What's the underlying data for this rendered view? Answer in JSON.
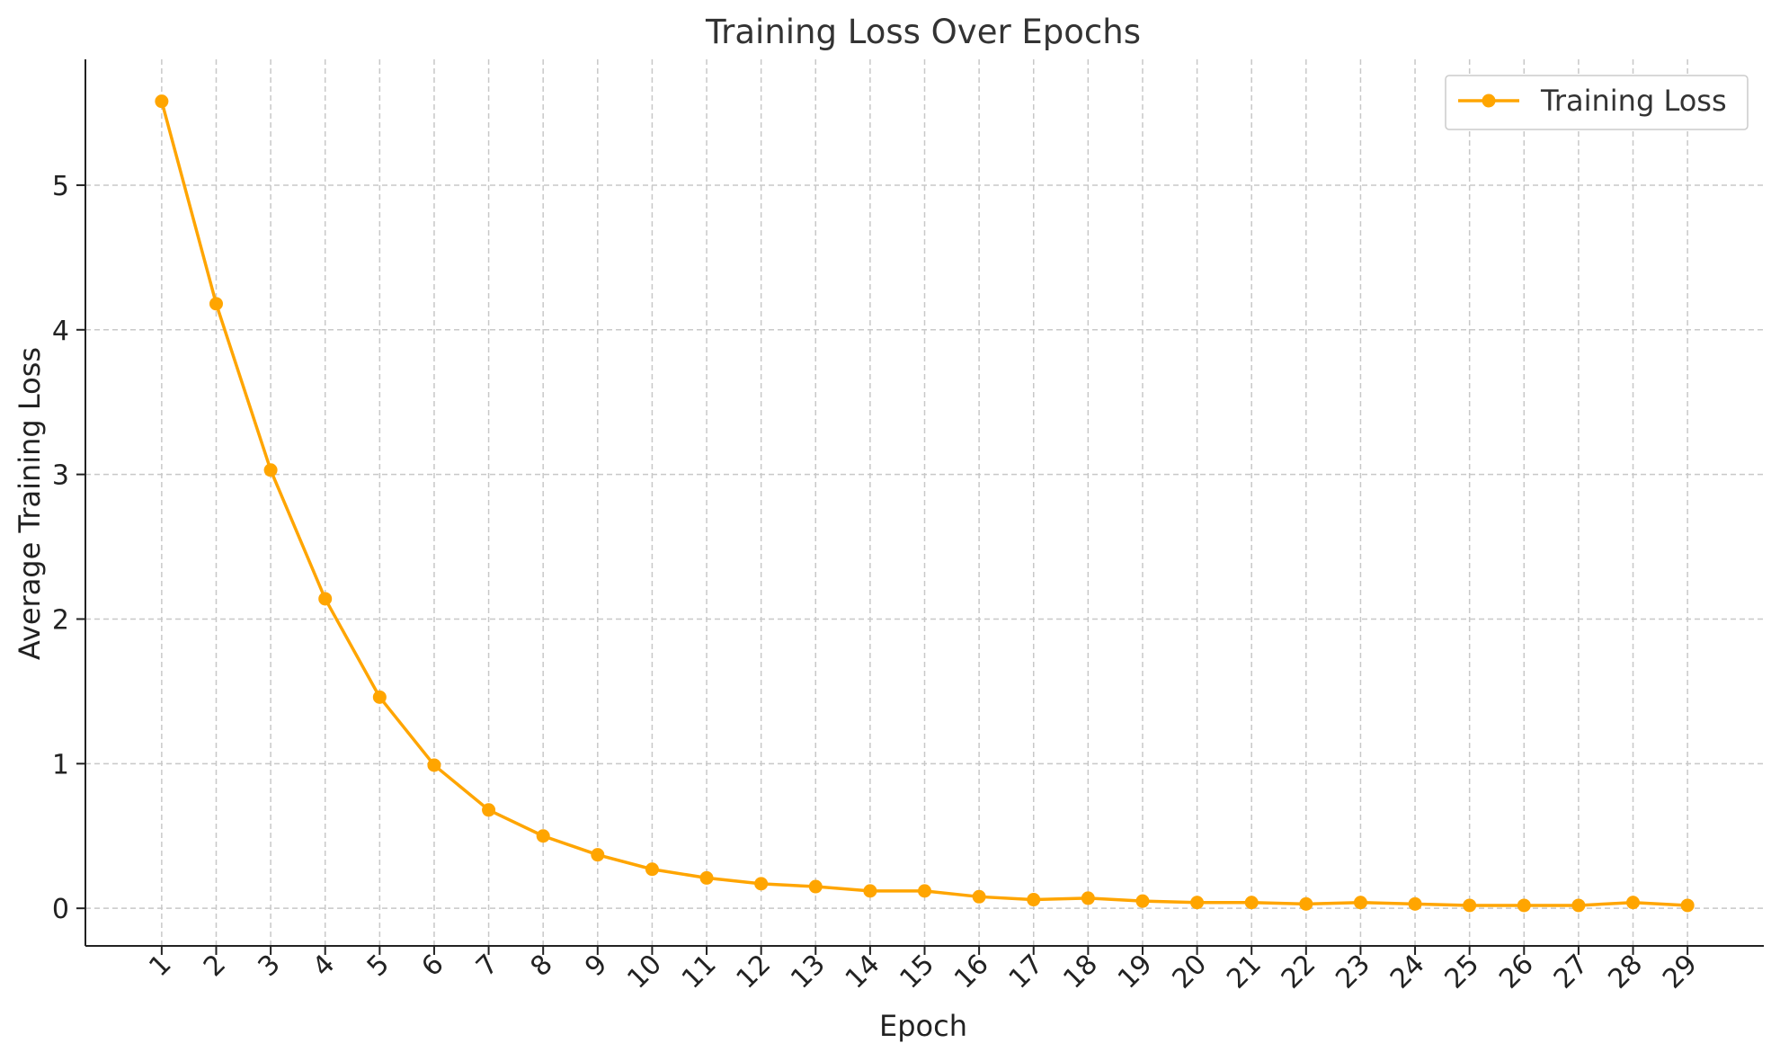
{
  "chart_data": {
    "type": "line",
    "title": "Training Loss Over Epochs",
    "xlabel": "Epoch",
    "ylabel": "Average Training Loss",
    "x": [
      1,
      2,
      3,
      4,
      5,
      6,
      7,
      8,
      9,
      10,
      11,
      12,
      13,
      14,
      15,
      16,
      17,
      18,
      19,
      20,
      21,
      22,
      23,
      24,
      25,
      26,
      27,
      28,
      29
    ],
    "series": [
      {
        "name": "Training Loss",
        "color": "#FFA500",
        "values": [
          5.58,
          4.18,
          3.03,
          2.14,
          1.46,
          0.99,
          0.68,
          0.5,
          0.37,
          0.27,
          0.21,
          0.17,
          0.15,
          0.12,
          0.12,
          0.08,
          0.06,
          0.07,
          0.05,
          0.04,
          0.04,
          0.03,
          0.04,
          0.03,
          0.02,
          0.02,
          0.02,
          0.04,
          0.02
        ]
      }
    ],
    "xlim": [
      -0.4,
      30.4
    ],
    "ylim": [
      -0.26,
      5.87
    ],
    "yticks": [
      0,
      1,
      2,
      3,
      4,
      5
    ],
    "grid": true,
    "legend": "top-right"
  }
}
